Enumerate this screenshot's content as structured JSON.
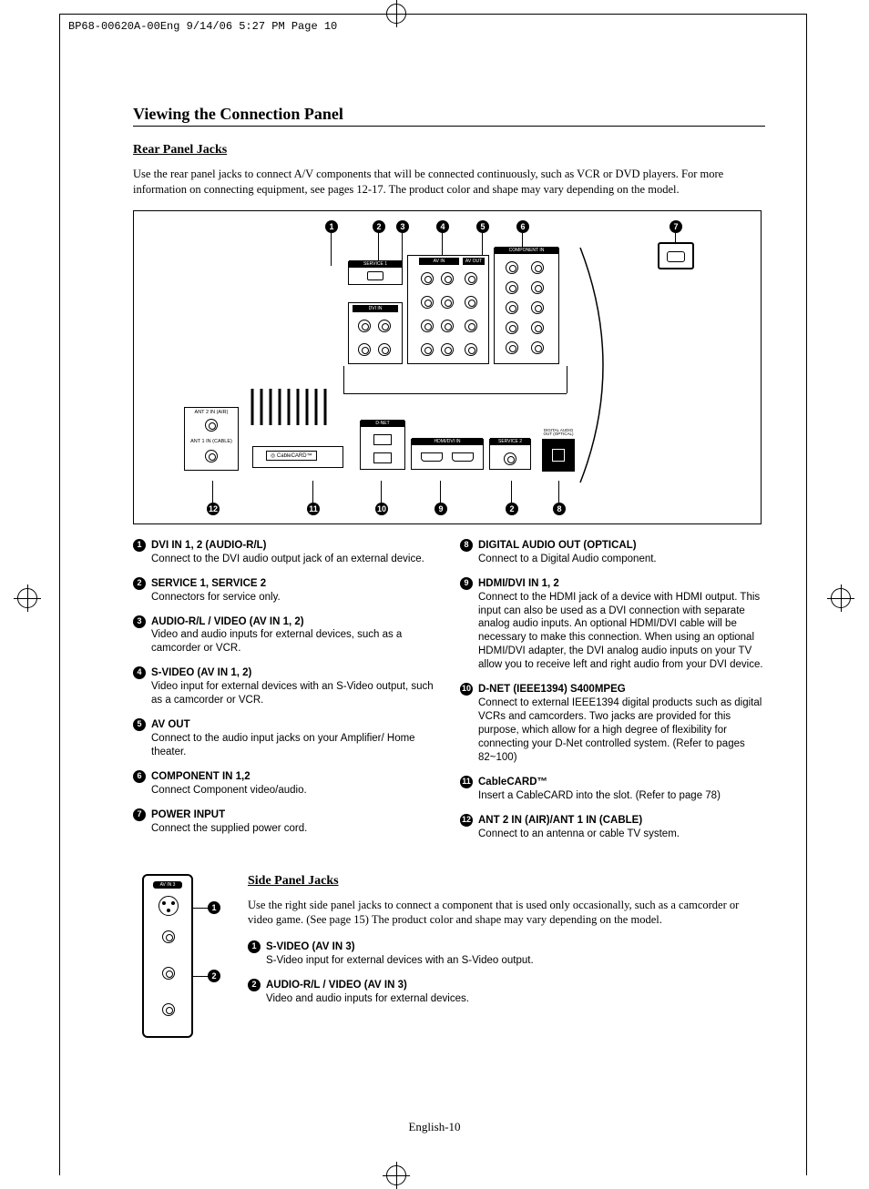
{
  "print_header": "BP68-00620A-00Eng  9/14/06  5:27 PM  Page 10",
  "section_title": "Viewing the Connection Panel",
  "rear": {
    "heading": "Rear Panel Jacks",
    "intro": "Use the rear panel jacks to connect A/V components that will be connected continuously, such as VCR or DVD players. For more information on connecting equipment, see pages 12-17. The product color and shape may vary depending on the model.",
    "callouts_top": [
      "1",
      "2",
      "3",
      "4",
      "5",
      "6",
      "7"
    ],
    "callouts_bottom": [
      "12",
      "11",
      "10",
      "9",
      "2",
      "8"
    ],
    "labels": {
      "service1": "SERVICE 1",
      "av_in": "AV IN",
      "av_out": "AV OUT",
      "dvi_in": "DVI IN",
      "component_in": "COMPONENT IN",
      "ant2": "ANT 2 IN (AIR)",
      "ant1": "ANT 1 IN (CABLE)",
      "cablecard": "◎ CableCARD™",
      "dnet": "D-NET",
      "hdmi_dvi": "HDMI/DVI IN",
      "service2": "SERVICE 2",
      "digital_audio": "DIGITAL AUDIO OUT (OPTICAL)"
    },
    "items_left": [
      {
        "n": "1",
        "title": "DVI IN 1, 2 (AUDIO-R/L)",
        "desc": "Connect to the DVI audio output jack of an external device."
      },
      {
        "n": "2",
        "title": "SERVICE 1, SERVICE 2",
        "desc": "Connectors for service only."
      },
      {
        "n": "3",
        "title": "AUDIO-R/L / VIDEO (AV IN 1, 2)",
        "desc": "Video and audio inputs for external devices, such as a camcorder or VCR."
      },
      {
        "n": "4",
        "title": "S-VIDEO (AV IN 1, 2)",
        "desc": "Video input for external devices with an S-Video output, such as a camcorder or VCR."
      },
      {
        "n": "5",
        "title": "AV OUT",
        "desc": "Connect to the audio input jacks on your Amplifier/ Home theater."
      },
      {
        "n": "6",
        "title": "COMPONENT IN 1,2",
        "desc": "Connect Component video/audio."
      },
      {
        "n": "7",
        "title": "POWER INPUT",
        "desc": "Connect the supplied power cord."
      }
    ],
    "items_right": [
      {
        "n": "8",
        "title": "DIGITAL AUDIO OUT (OPTICAL)",
        "desc": "Connect to a Digital Audio component."
      },
      {
        "n": "9",
        "title": "HDMI/DVI IN 1, 2",
        "desc": "Connect to the HDMI jack of a device with HDMI output. This input can also be used as a DVI connection with separate analog audio inputs. An optional HDMI/DVI cable will be necessary to make this connection. When using an optional HDMI/DVI adapter, the DVI analog audio inputs on your TV allow you to receive left and right audio from your DVI device."
      },
      {
        "n": "10",
        "title": "D-NET (IEEE1394) S400MPEG",
        "desc": "Connect to external IEEE1394 digital products such as digital VCRs and camcorders. Two jacks are provided for this purpose, which allow for a high degree of flexibility for connecting your D-Net controlled system. (Refer to pages 82~100)"
      },
      {
        "n": "11",
        "title": "CableCARD™",
        "desc": "Insert a CableCARD into the slot. (Refer to page 78)"
      },
      {
        "n": "12",
        "title": "ANT 2 IN (AIR)/ANT 1 IN (CABLE)",
        "desc": "Connect to an antenna or cable TV system."
      }
    ]
  },
  "side": {
    "heading": "Side Panel Jacks",
    "intro": "Use the right side panel jacks to connect a component that is used only occasionally, such as a camcorder or video game. (See page 15) The product color and shape may vary depending on the model.",
    "label_avin3": "AV IN 3",
    "items": [
      {
        "n": "1",
        "title": "S-VIDEO (AV IN 3)",
        "desc": "S-Video input for external devices with an S-Video output."
      },
      {
        "n": "2",
        "title": "AUDIO-R/L / VIDEO (AV IN 3)",
        "desc": "Video and audio inputs for external devices."
      }
    ]
  },
  "footer": "English-10"
}
